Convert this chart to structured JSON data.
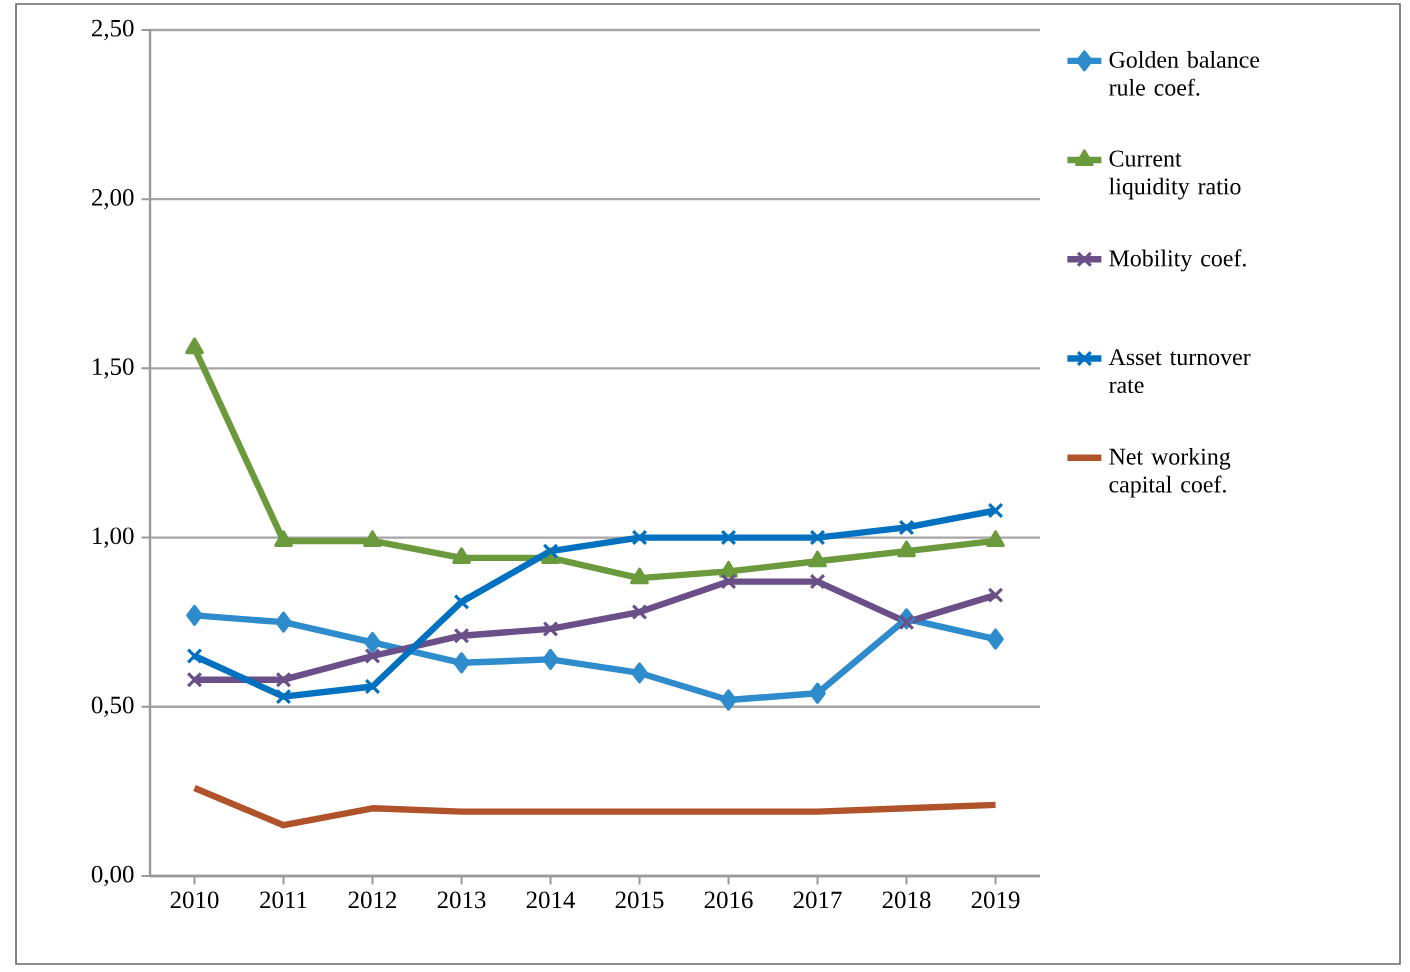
{
  "chart_data": {
    "type": "line",
    "categories": [
      "2010",
      "2011",
      "2012",
      "2013",
      "2014",
      "2015",
      "2016",
      "2017",
      "2018",
      "2019"
    ],
    "series": [
      {
        "name": "Golden balance rule coef.",
        "color": "#2e8bcc",
        "marker": "diamond",
        "values": [
          0.77,
          0.75,
          0.69,
          0.63,
          0.64,
          0.6,
          0.52,
          0.54,
          0.76,
          0.7
        ]
      },
      {
        "name": "Current liquidity ratio",
        "color": "#6a9a3c",
        "marker": "triangle",
        "values": [
          1.56,
          0.99,
          0.99,
          0.94,
          0.94,
          0.88,
          0.9,
          0.93,
          0.96,
          0.99
        ]
      },
      {
        "name": "Mobility coef.",
        "color": "#6a4f88",
        "marker": "cross",
        "values": [
          0.58,
          0.58,
          0.65,
          0.71,
          0.73,
          0.78,
          0.87,
          0.87,
          0.75,
          0.83
        ]
      },
      {
        "name": "Asset turnover rate",
        "color": "#0070c0",
        "marker": "cross",
        "values": [
          0.65,
          0.53,
          0.56,
          0.81,
          0.96,
          1.0,
          1.0,
          1.0,
          1.03,
          1.08
        ]
      },
      {
        "name": "Net working capital coef.",
        "color": "#b0522a",
        "marker": "none",
        "values": [
          0.26,
          0.15,
          0.2,
          0.19,
          0.19,
          0.19,
          0.19,
          0.19,
          0.2,
          0.21
        ]
      }
    ],
    "ylim": [
      0,
      2.5
    ],
    "yticks": [
      {
        "value": 0,
        "label": "0,00"
      },
      {
        "value": 0.5,
        "label": "0,50"
      },
      {
        "value": 1,
        "label": "1,00"
      },
      {
        "value": 1.5,
        "label": "1,50"
      },
      {
        "value": 2,
        "label": "2,00"
      },
      {
        "value": 2.5,
        "label": "2,50"
      }
    ],
    "grid": "y",
    "legend": "right",
    "line_style": "solid"
  }
}
